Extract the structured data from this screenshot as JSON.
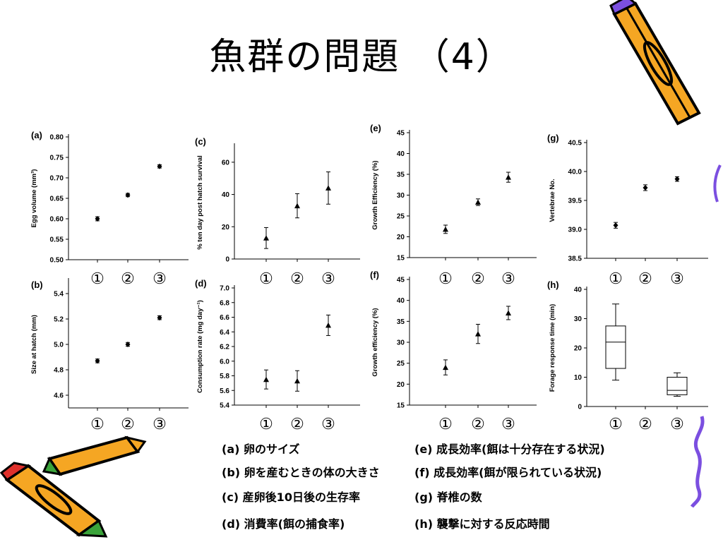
{
  "slide": {
    "title": "魚群の問題 （4）"
  },
  "group_labels": [
    "①",
    "②",
    "③"
  ],
  "captions": [
    "(a) 卵のサイズ",
    "(b) 卵を産むときの体の大きさ",
    "(c) 産卵後10日後の生存率",
    "(d) 消費率(餌の捕食率)",
    "(e) 成長効率(餌は十分存在する状況)",
    "(f) 成長効率(餌が限られている状況)",
    "(g) 脊椎の数",
    "(h) 襲撃に対する反応時間"
  ],
  "chart_data": [
    {
      "id": "a",
      "panel_label": "(a)",
      "type": "scatter",
      "marker": "diamond",
      "ylabel": "Egg volume (mm³)",
      "ylim": [
        0.5,
        0.8
      ],
      "yticks": [
        "0.50",
        "0.55",
        "0.60",
        "0.65",
        "0.70",
        "0.75",
        "0.80"
      ],
      "categories": [
        "①",
        "②",
        "③"
      ],
      "values": [
        0.6,
        0.658,
        0.728
      ],
      "errors": [
        0.005,
        0.004,
        0.004
      ]
    },
    {
      "id": "b",
      "panel_label": "(b)",
      "type": "scatter",
      "marker": "diamond",
      "ylabel": "Size at hatch (mm)",
      "ylim": [
        4.5,
        5.5
      ],
      "yticks": [
        "4.6",
        "4.8",
        "5.0",
        "5.2",
        "5.4"
      ],
      "categories": [
        "①",
        "②",
        "③"
      ],
      "values": [
        4.87,
        5.0,
        5.21
      ],
      "errors": [
        0.015,
        0.015,
        0.015
      ]
    },
    {
      "id": "c",
      "panel_label": "(c)",
      "type": "scatter",
      "marker": "triangle",
      "ylabel": "% ten day post hatch survival",
      "ylim": [
        0,
        70
      ],
      "yticks": [
        "0",
        "20",
        "40",
        "60"
      ],
      "categories": [
        "①",
        "②",
        "③"
      ],
      "values": [
        13,
        33,
        44
      ],
      "errors": [
        6.5,
        7.5,
        10
      ]
    },
    {
      "id": "d",
      "panel_label": "(d)",
      "type": "scatter",
      "marker": "triangle",
      "ylabel": "Consumption rate (mg day⁻¹)",
      "ylim": [
        5.4,
        7.0
      ],
      "yticks": [
        "5.4",
        "5.6",
        "5.8",
        "6.0",
        "6.2",
        "6.4",
        "6.6",
        "6.8",
        "7.0"
      ],
      "categories": [
        "①",
        "②",
        "③"
      ],
      "values": [
        5.75,
        5.73,
        6.49
      ],
      "errors": [
        0.13,
        0.14,
        0.14
      ]
    },
    {
      "id": "e",
      "panel_label": "(e)",
      "type": "scatter",
      "marker": "triangle",
      "ylabel": "Growth Efficiency (%)",
      "ylim": [
        15,
        45
      ],
      "yticks": [
        "15",
        "20",
        "25",
        "30",
        "35",
        "40",
        "45"
      ],
      "categories": [
        "①",
        "②",
        "③"
      ],
      "values": [
        21.8,
        28.3,
        34.3
      ],
      "errors": [
        1.0,
        0.8,
        1.2
      ]
    },
    {
      "id": "f",
      "panel_label": "(f)",
      "type": "scatter",
      "marker": "triangle",
      "ylabel": "Growth efficiency (%)",
      "ylim": [
        15,
        45
      ],
      "yticks": [
        "15",
        "20",
        "25",
        "30",
        "35",
        "40",
        "45"
      ],
      "categories": [
        "①",
        "②",
        "③"
      ],
      "values": [
        24.0,
        32.0,
        37.0
      ],
      "errors": [
        1.8,
        2.3,
        1.6
      ]
    },
    {
      "id": "g",
      "panel_label": "(g)",
      "type": "scatter",
      "marker": "diamond",
      "ylabel": "Vertebrae No.",
      "ylim": [
        38.5,
        40.5
      ],
      "yticks": [
        "38.5",
        "39.0",
        "39.5",
        "40.0",
        "40.5"
      ],
      "categories": [
        "①",
        "②",
        "③"
      ],
      "values": [
        39.07,
        39.72,
        39.87
      ],
      "errors": [
        0.05,
        0.05,
        0.04
      ]
    },
    {
      "id": "h",
      "panel_label": "(h)",
      "type": "box",
      "ylabel": "Forage response time (min)",
      "ylim": [
        0,
        40
      ],
      "yticks": [
        "0",
        "10",
        "20",
        "30",
        "40"
      ],
      "categories": [
        "①",
        "②",
        "③"
      ],
      "boxes": [
        {
          "group": "①",
          "min": 9,
          "q1": 13,
          "median": 22,
          "q3": 27.5,
          "max": 35
        },
        null,
        {
          "group": "③",
          "min": 3.5,
          "q1": 4,
          "median": 5.5,
          "q3": 10,
          "max": 11.5
        }
      ]
    }
  ],
  "decorations": {
    "pencil_colors": [
      "#f5a623",
      "#000000",
      "#7b4fe0",
      "#e0312c",
      "#3aa33a"
    ]
  }
}
